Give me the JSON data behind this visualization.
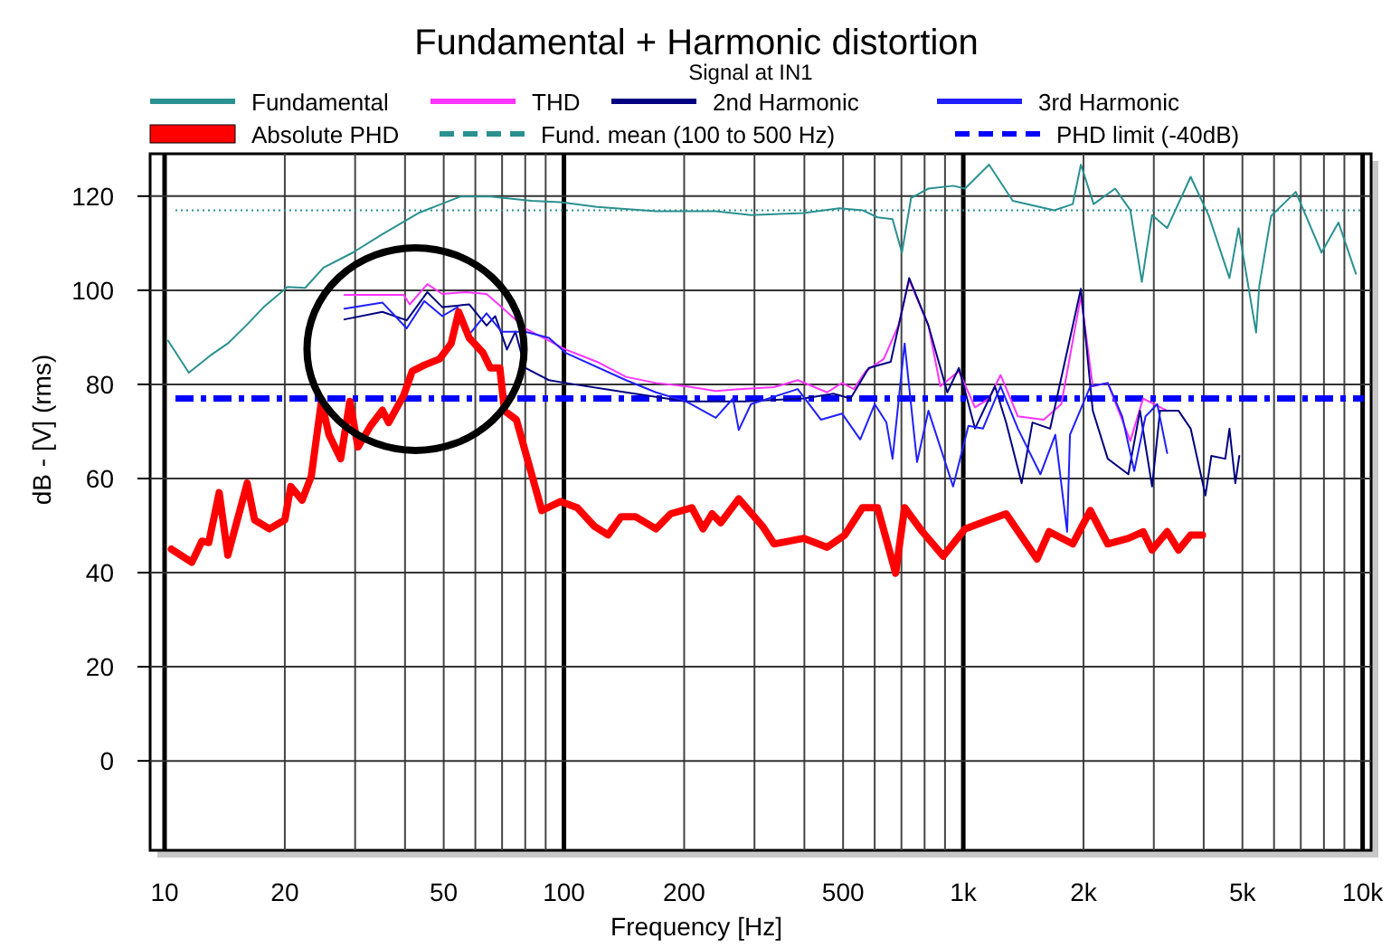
{
  "chart_data": {
    "type": "line",
    "title": "Fundamental + Harmonic distortion",
    "subtitle": "Signal at IN1",
    "xlabel": "Frequency [Hz]",
    "ylabel": "dB - [V]   (rms)",
    "log": "x",
    "grid": true,
    "legend": "top",
    "marker": "none",
    "line_style": "solid",
    "xlim": [
      9.2,
      10500
    ],
    "ylim": [
      -19,
      129
    ],
    "xticks": [
      10,
      20,
      {
        "value": 30,
        "label": null
      },
      {
        "value": 40,
        "label": null
      },
      50,
      {
        "value": 60,
        "label": null
      },
      {
        "value": 70,
        "label": null
      },
      {
        "value": 80,
        "label": null
      },
      {
        "value": 90,
        "label": null
      },
      100,
      200,
      {
        "value": 300,
        "label": null
      },
      {
        "value": 400,
        "label": null
      },
      500,
      {
        "value": 600,
        "label": null
      },
      {
        "value": 700,
        "label": null
      },
      {
        "value": 800,
        "label": null
      },
      {
        "value": 900,
        "label": null
      },
      {
        "value": 1000,
        "label": "1k"
      },
      {
        "value": 2000,
        "label": "2k"
      },
      {
        "value": 3000,
        "label": null
      },
      {
        "value": 4000,
        "label": null
      },
      {
        "value": 5000,
        "label": "5k"
      },
      {
        "value": 6000,
        "label": null
      },
      {
        "value": 7000,
        "label": null
      },
      {
        "value": 8000,
        "label": null
      },
      {
        "value": 9000,
        "label": null
      },
      {
        "value": 10000,
        "label": "10k"
      }
    ],
    "yticks": [
      0,
      20,
      40,
      60,
      80,
      100,
      120
    ],
    "series": [
      {
        "name": "Fundamental",
        "color": "#2a9090",
        "x": [
          10.2,
          11.5,
          13.0,
          14.4,
          16.0,
          17.7,
          20.3,
          22.5,
          25.0,
          29.6,
          35.1,
          43.2,
          49.6,
          55.0,
          65.4,
          83.0,
          98,
          121,
          170,
          240,
          294,
          398,
          489,
          559,
          610,
          665,
          702,
          740,
          818,
          943,
          1010,
          1160,
          1330,
          1690,
          1880,
          1970,
          2120,
          2400,
          2620,
          2800,
          2970,
          3240,
          3710,
          4120,
          4640,
          4890,
          5410,
          5510,
          5900,
          6800,
          7890,
          8700,
          9620
        ],
        "values": [
          89.3,
          82.5,
          86.1,
          88.7,
          92.5,
          96.4,
          100.7,
          100.5,
          104.8,
          108.0,
          111.9,
          116.4,
          118.4,
          119.9,
          119.9,
          119.0,
          118.7,
          117.7,
          116.8,
          116.8,
          116.0,
          116.4,
          117.4,
          117.0,
          115.5,
          115.1,
          108.0,
          119.6,
          121.6,
          122.2,
          121.6,
          126.7,
          119.0,
          117.0,
          118.3,
          126.7,
          118.3,
          121.6,
          117.0,
          101.8,
          116.0,
          113.2,
          124.1,
          115.8,
          102.6,
          113.2,
          91.0,
          100.9,
          115.8,
          120.9,
          108.0,
          114.4,
          103.5
        ]
      },
      {
        "name": "THD",
        "color": "#ff33ff",
        "x": [
          28.2,
          39.7,
          41.1,
          45.5,
          49.6,
          56.8,
          64.0,
          69.8,
          80.0,
          91.7,
          101,
          121,
          143,
          170,
          202,
          240,
          274,
          336,
          385,
          456,
          497,
          532,
          570,
          632,
          688,
          732,
          818,
          876,
          975,
          1070,
          1160,
          1240,
          1370,
          1590,
          1760,
          1970,
          2110,
          2300,
          2620,
          2820,
          3240
        ],
        "values": [
          99.0,
          99.0,
          97.0,
          101.3,
          99.2,
          99.6,
          99.2,
          96.4,
          91.9,
          89.3,
          87.4,
          84.8,
          81.6,
          80.3,
          79.6,
          78.6,
          79.0,
          79.4,
          80.9,
          78.3,
          80.3,
          79.0,
          82.8,
          85.4,
          92.5,
          102.2,
          92.5,
          79.6,
          82.8,
          75.1,
          77.0,
          82.0,
          73.2,
          72.5,
          75.8,
          98.8,
          79.6,
          80.3,
          68.0,
          77.0,
          74.4
        ]
      },
      {
        "name": "2nd Harmonic",
        "color": "#000080",
        "x": [
          28.2,
          35.1,
          40.4,
          45.5,
          49.6,
          57.9,
          64.0,
          67.3,
          72.0,
          75.6,
          80.0,
          91.7,
          101,
          143,
          202,
          284,
          398,
          473,
          522,
          580,
          658,
          732,
          818,
          912,
          975,
          1070,
          1200,
          1280,
          1400,
          1490,
          1650,
          1970,
          2110,
          2300,
          2590,
          2770,
          2970,
          3110,
          3460,
          3710,
          4040,
          4180,
          4530,
          4640,
          4800,
          4910
        ],
        "values": [
          93.8,
          95.4,
          93.6,
          99.6,
          96.4,
          97.0,
          92.5,
          94.5,
          87.4,
          91.2,
          83.5,
          80.9,
          80.3,
          78.3,
          76.4,
          76.4,
          77.0,
          78.0,
          77.0,
          83.5,
          84.8,
          102.6,
          92.5,
          78.3,
          83.5,
          70.6,
          79.6,
          71.9,
          59.0,
          71.9,
          70.6,
          100.3,
          74.4,
          64.2,
          60.9,
          74.4,
          58.3,
          74.4,
          74.4,
          70.6,
          56.4,
          64.8,
          64.2,
          70.6,
          59.0,
          64.8
        ]
      },
      {
        "name": "3rd Harmonic",
        "color": "#1f1fff",
        "x": [
          28.2,
          35.1,
          40.4,
          44.7,
          49.6,
          54.1,
          57.9,
          64.0,
          69.8,
          80.0,
          91.7,
          101,
          143,
          170,
          202,
          240,
          265,
          274,
          294,
          385,
          440,
          497,
          552,
          600,
          642,
          665,
          713,
          766,
          818,
          943,
          1030,
          1120,
          1240,
          1370,
          1560,
          1700,
          1820,
          1850,
          2080,
          2300,
          2500,
          2680,
          2860,
          3060,
          3240
        ],
        "values": [
          96.1,
          97.4,
          91.9,
          97.7,
          94.5,
          96.4,
          90.6,
          95.1,
          91.2,
          91.2,
          89.9,
          86.7,
          80.9,
          78.3,
          76.4,
          72.9,
          77.0,
          70.3,
          75.8,
          79.0,
          72.5,
          73.8,
          68.3,
          75.8,
          71.9,
          64.2,
          88.7,
          63.5,
          74.4,
          58.3,
          71.2,
          70.6,
          79.6,
          70.6,
          60.9,
          69.3,
          48.7,
          69.3,
          79.6,
          80.3,
          73.2,
          61.6,
          73.2,
          75.8,
          65.4
        ]
      },
      {
        "name": "Absolute PHD",
        "color": "#ff0000",
        "x": [
          10.4,
          11.7,
          12.4,
          12.9,
          13.7,
          14.4,
          16.1,
          16.8,
          18.3,
          20.0,
          20.7,
          22.1,
          23.3,
          24.7,
          25.8,
          27.6,
          29.1,
          30.5,
          32.8,
          35.1,
          36.4,
          39.7,
          41.7,
          44.7,
          48.8,
          52.2,
          54.5,
          57.9,
          62.7,
          65.4,
          69.1,
          71.0,
          76.0,
          88.0,
          98.1,
          108,
          119,
          129,
          139,
          151,
          170,
          185,
          209,
          223,
          235,
          247,
          274,
          314,
          336,
          398,
          456,
          505,
          559,
          610,
          677,
          713,
          790,
          891,
          1010,
          1160,
          1280,
          1530,
          1640,
          1880,
          2080,
          2300,
          2590,
          2820,
          2970,
          3240,
          3460,
          3710,
          3970
        ],
        "values": [
          45.0,
          42.2,
          46.7,
          46.4,
          57.0,
          43.7,
          59.0,
          51.2,
          49.3,
          51.2,
          58.3,
          55.4,
          60.5,
          76.4,
          69.3,
          64.2,
          76.4,
          66.7,
          71.2,
          74.5,
          71.9,
          77.7,
          82.8,
          84.1,
          85.4,
          88.7,
          95.4,
          89.9,
          86.7,
          83.5,
          83.5,
          74.4,
          72.5,
          53.2,
          55.1,
          53.8,
          49.9,
          48.0,
          51.9,
          51.9,
          49.3,
          52.5,
          53.8,
          49.3,
          52.5,
          50.6,
          55.7,
          49.9,
          46.1,
          47.3,
          45.4,
          48.0,
          53.8,
          53.8,
          39.9,
          53.8,
          48.7,
          43.5,
          49.3,
          51.2,
          52.5,
          42.9,
          48.7,
          46.1,
          53.2,
          46.1,
          47.3,
          48.7,
          44.8,
          48.7,
          44.8,
          48.0,
          48.0
        ]
      }
    ],
    "ref_lines": [
      {
        "axis": "y",
        "value": 117,
        "label": "Fund. mean (100 to 500 Hz)",
        "color": "#2a9090",
        "line_style": "dotted"
      },
      {
        "axis": "y",
        "value": 77,
        "label": "PHD limit (-40dB)",
        "color": "#0000ff",
        "line_style": "dashed"
      }
    ]
  }
}
